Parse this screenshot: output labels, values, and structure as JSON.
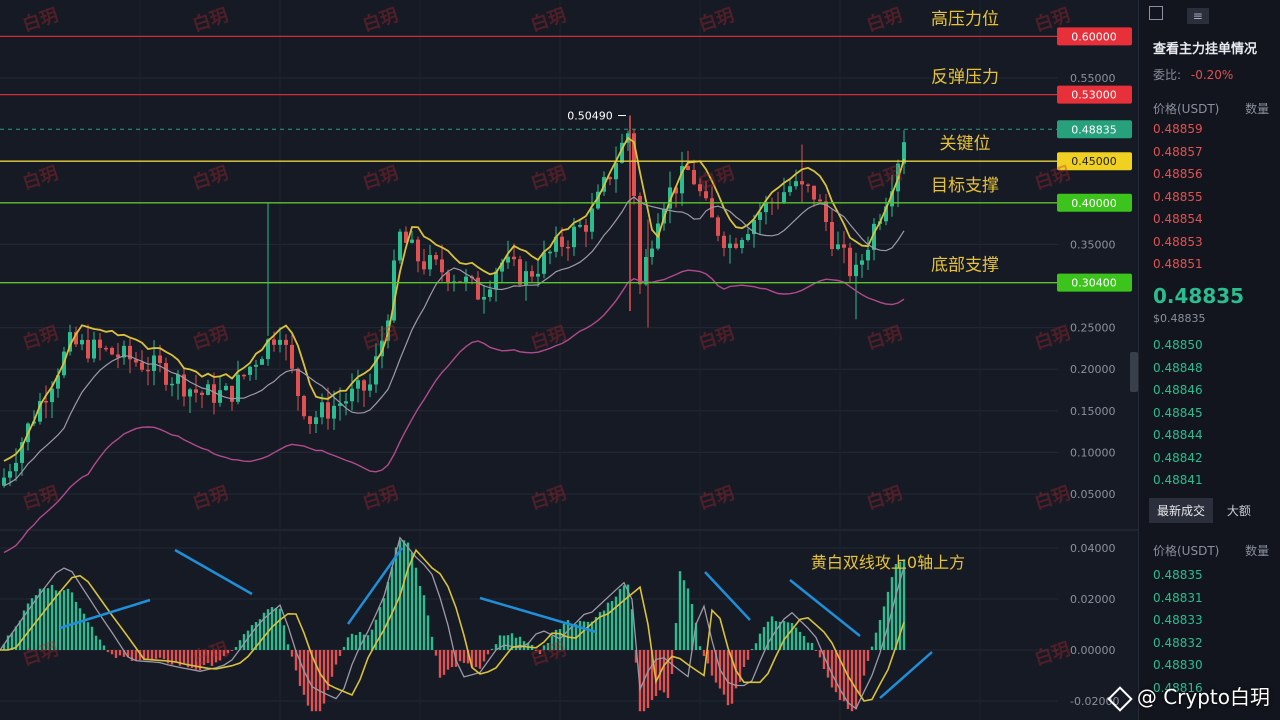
{
  "chart_data": [
    {
      "type": "candlestick",
      "title": "",
      "y_ticks": [
        "0.55000",
        "0.35000",
        "0.25000",
        "0.20000",
        "0.15000",
        "0.10000",
        "0.05000"
      ],
      "ylim": [
        0.03,
        0.62
      ],
      "price_tags": [
        {
          "value": 0.6,
          "label": "0.60000",
          "color": "#e8303a"
        },
        {
          "value": 0.53,
          "label": "0.53000",
          "color": "#e8303a"
        },
        {
          "value": 0.48835,
          "label": "0.48835",
          "color": "#26a17b"
        },
        {
          "value": 0.45,
          "label": "0.45000",
          "color": "#f0d020"
        },
        {
          "value": 0.4,
          "label": "0.40000",
          "color": "#3cc41c"
        },
        {
          "value": 0.304,
          "label": "0.30400",
          "color": "#3cc41c"
        }
      ],
      "level_lines": [
        {
          "value": 0.6,
          "color": "#d02c36",
          "text": "高压力位"
        },
        {
          "value": 0.53,
          "color": "#d02c36",
          "text": "反弹压力"
        },
        {
          "value": 0.45,
          "color": "#e6d23a",
          "text": "关键位"
        },
        {
          "value": 0.4,
          "color": "#5cc430",
          "text": "目标支撑"
        },
        {
          "value": 0.304,
          "color": "#5cc430",
          "text": "底部支撑"
        }
      ],
      "high_marker": "0.50490",
      "high_value": 0.5049,
      "grid": true
    },
    {
      "type": "bar",
      "title": "",
      "y_ticks": [
        "0.04000",
        "0.02000",
        "0.00000",
        "-0.02000"
      ],
      "ylim": [
        -0.026,
        0.046
      ],
      "annotation": "黄白双线攻上0轴上方",
      "grid": true
    }
  ],
  "watermark": "白玥",
  "sidebar": {
    "title": "查看主力挂单情况",
    "ratio_label": "委比:",
    "ratio_value": "-0.20%",
    "col_price": "价格(USDT)",
    "col_qty": "数量",
    "asks": [
      "0.48859",
      "0.48857",
      "0.48856",
      "0.48855",
      "0.48854",
      "0.48853",
      "0.48851"
    ],
    "last_price": "0.48835",
    "last_price_sub": "$0.48835",
    "bids": [
      "0.48850",
      "0.48848",
      "0.48846",
      "0.48845",
      "0.48844",
      "0.48842",
      "0.48841"
    ],
    "tab_latest": "最新成交",
    "tab_big": "大额",
    "trades": [
      "0.48835",
      "0.48831",
      "0.48833",
      "0.48832",
      "0.48830",
      "0.48816"
    ]
  },
  "brand": "@ Crypto白玥",
  "colors": {
    "up": "#2bbd8f",
    "down": "#e05252",
    "yellow_line": "#d9c23a",
    "white_line": "#9c9aa6",
    "bb_lower": "#b04a8c",
    "arrow": "#1e8fd8"
  }
}
